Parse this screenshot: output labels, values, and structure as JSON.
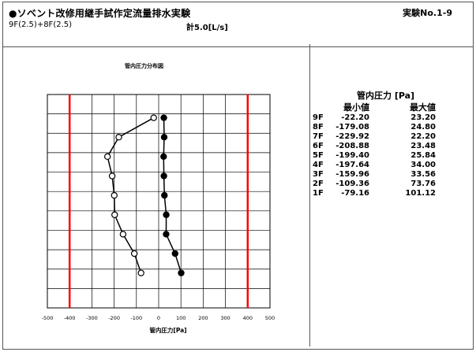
{
  "header": {
    "title": "●ソベント改修用継手試作定流量排水実験",
    "conditions": "9F(2.5)+8F(2.5)",
    "total": "計5.0[L/s]",
    "experiment_no": "実験No.1-9"
  },
  "table": {
    "title": "管内圧力 [Pa]",
    "col_min": "最小値",
    "col_max": "最大値",
    "rows": [
      {
        "floor": "9F",
        "min": "-22.20",
        "max": "23.20"
      },
      {
        "floor": "8F",
        "min": "-179.08",
        "max": "24.80"
      },
      {
        "floor": "7F",
        "min": "-229.92",
        "max": "22.20"
      },
      {
        "floor": "6F",
        "min": "-208.88",
        "max": "23.48"
      },
      {
        "floor": "5F",
        "min": "-199.40",
        "max": "25.84"
      },
      {
        "floor": "4F",
        "min": "-197.64",
        "max": "34.00"
      },
      {
        "floor": "3F",
        "min": "-159.96",
        "max": "33.56"
      },
      {
        "floor": "2F",
        "min": "-109.36",
        "max": "73.76"
      },
      {
        "floor": "1F",
        "min": "-79.16",
        "max": "101.12"
      }
    ]
  },
  "chart_data": {
    "type": "line",
    "title": "管内圧力分布図",
    "xlabel": "管内圧力[Pa]",
    "ylabel": "",
    "xlim": [
      -500,
      500
    ],
    "xticks": [
      "-500",
      "-400",
      "-300",
      "-200",
      "-100",
      "0",
      "100",
      "200",
      "300",
      "400",
      "500"
    ],
    "ylevels": 11,
    "floors": [
      "9F",
      "8F",
      "7F",
      "6F",
      "5F",
      "4F",
      "3F",
      "2F",
      "1F"
    ],
    "floor_levels": [
      9.8,
      8.8,
      7.8,
      6.8,
      5.8,
      4.8,
      3.8,
      2.8,
      1.8
    ],
    "series": [
      {
        "values": [
          -22.2,
          -179.08,
          -229.92,
          -208.88,
          -199.4,
          -197.64,
          -159.96,
          -109.36,
          -79.16
        ],
        "marker": "open",
        "color": "#000000"
      },
      {
        "values": [
          23.2,
          24.8,
          22.2,
          23.48,
          25.84,
          34.0,
          33.56,
          73.76,
          101.12
        ],
        "marker": "filled",
        "color": "#000000"
      }
    ],
    "limit_lines": [
      -400,
      400
    ],
    "limit_color": "#ff0000",
    "grid": true
  }
}
